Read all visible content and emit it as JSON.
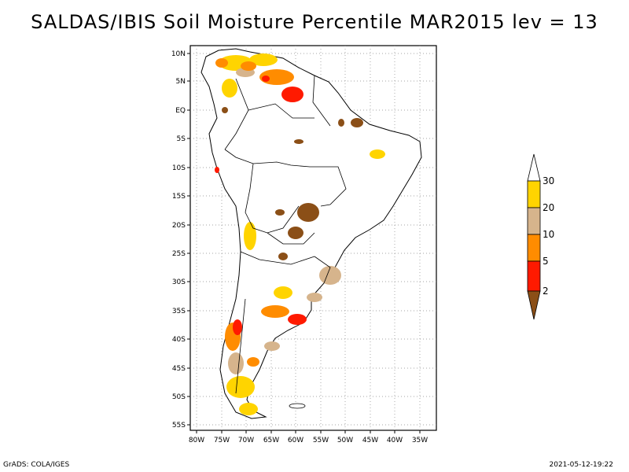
{
  "title": "SALDAS/IBIS Soil Moisture Percentile MAR2015 lev = 13",
  "footer": {
    "left": "GrADS: COLA/IGES",
    "right": "2021-05-12-19:22"
  },
  "axes": {
    "lat_labels": [
      "10N",
      "5N",
      "EQ",
      "5S",
      "10S",
      "15S",
      "20S",
      "25S",
      "30S",
      "35S",
      "40S",
      "45S",
      "50S",
      "55S"
    ],
    "lon_labels": [
      "80W",
      "75W",
      "70W",
      "65W",
      "60W",
      "55W",
      "50W",
      "45W",
      "40W",
      "35W"
    ]
  },
  "colorbar": {
    "labels": [
      "2",
      "5",
      "10",
      "20",
      "30"
    ],
    "colors": {
      "below_2": "#8b4f17",
      "2_5": "#ff1a00",
      "5_10": "#ff8c00",
      "10_20": "#d6b48c",
      "20_30": "#ffd400",
      "above_30": "#ffffff"
    }
  }
}
